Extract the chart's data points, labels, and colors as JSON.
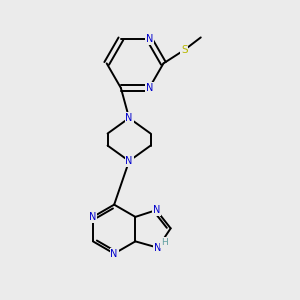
{
  "background_color": "#ebebeb",
  "bond_color": "#000000",
  "N_color": "#0000cc",
  "S_color": "#b8b800",
  "H_color": "#5f9ea0",
  "line_width": 1.4,
  "figsize": [
    3.0,
    3.0
  ],
  "dpi": 100,
  "xlim": [
    0,
    10
  ],
  "ylim": [
    0,
    10
  ]
}
